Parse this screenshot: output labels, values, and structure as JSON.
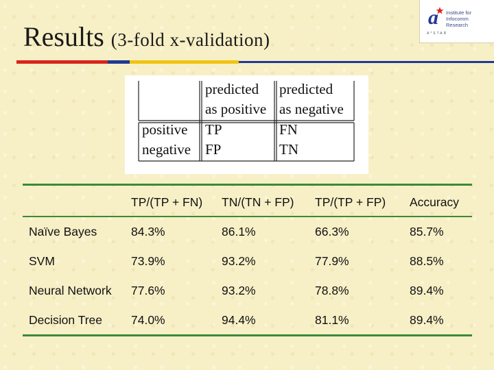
{
  "title": {
    "main": "Results",
    "sub": "(3-fold x-validation)"
  },
  "logo": {
    "line1": "Institute for",
    "line2": "Infocomm Research",
    "small": "A*STAR",
    "colors": {
      "accent": "#d9241c",
      "blue": "#1f3a93"
    }
  },
  "colors": {
    "background": "#f7efc6",
    "rule_red": "#d9241c",
    "rule_blue": "#1f3a93",
    "rule_yellow": "#f2c312",
    "table_lines": "#3a8a3a"
  },
  "confusion": {
    "col1_line1": "predicted",
    "col1_line2": "as positive",
    "col2_line1": "predicted",
    "col2_line2": "as negative",
    "row1": "positive",
    "row2": "negative",
    "tp": "TP",
    "fn": "FN",
    "fp": "FP",
    "tn": "TN"
  },
  "results": {
    "headers": [
      "",
      "TP/(TP + FN)",
      "TN/(TN + FP)",
      "TP/(TP + FP)",
      "Accuracy"
    ],
    "rows": [
      [
        "Naïve Bayes",
        "84.3%",
        "86.1%",
        "66.3%",
        "85.7%"
      ],
      [
        "SVM",
        "73.9%",
        "93.2%",
        "77.9%",
        "88.5%"
      ],
      [
        "Neural Network",
        "77.6%",
        "93.2%",
        "78.8%",
        "89.4%"
      ],
      [
        "Decision Tree",
        "74.0%",
        "94.4%",
        "81.1%",
        "89.4%"
      ]
    ]
  }
}
